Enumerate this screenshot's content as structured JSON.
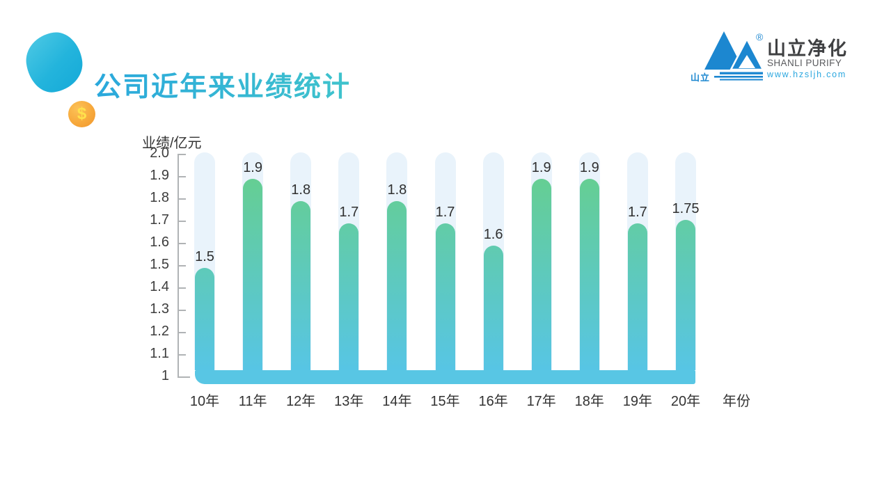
{
  "header": {
    "title": "公司近年来业绩统计",
    "coin_symbol": "$",
    "logo": {
      "name_cn": "山立净化",
      "name_en": "SHANLI PURIFY",
      "url": "www.hzsljh.com",
      "mark_text": "山立",
      "registered_mark": "®",
      "brand_blue": "#1c87d0"
    }
  },
  "chart_data": {
    "type": "bar",
    "title": "公司近年来业绩统计",
    "categories": [
      "10年",
      "11年",
      "12年",
      "13年",
      "14年",
      "15年",
      "16年",
      "17年",
      "18年",
      "19年",
      "20年"
    ],
    "values": [
      1.5,
      1.9,
      1.8,
      1.7,
      1.8,
      1.7,
      1.6,
      1.9,
      1.9,
      1.7,
      1.75
    ],
    "value_labels": [
      "1.5",
      "1.9",
      "1.8",
      "1.7",
      "1.8",
      "1.7",
      "1.6",
      "1.9",
      "1.9",
      "1.7",
      "1.75"
    ],
    "xlabel": "年份",
    "ylabel": "业绩/亿元",
    "ylim": [
      1,
      2.0
    ],
    "y_ticks": [
      "2.0",
      "1.9",
      "1.8",
      "1.7",
      "1.6",
      "1.5",
      "1.4",
      "1.3",
      "1.2",
      "1.1",
      "1"
    ],
    "grid": false,
    "legend": null,
    "colors": {
      "bar_top": "#65ce93",
      "bar_bottom": "#57c5e5",
      "track": "#e9f3fb",
      "baseline": "#58c6e4",
      "axis": "#b0b3b5",
      "label": "#333333"
    }
  }
}
